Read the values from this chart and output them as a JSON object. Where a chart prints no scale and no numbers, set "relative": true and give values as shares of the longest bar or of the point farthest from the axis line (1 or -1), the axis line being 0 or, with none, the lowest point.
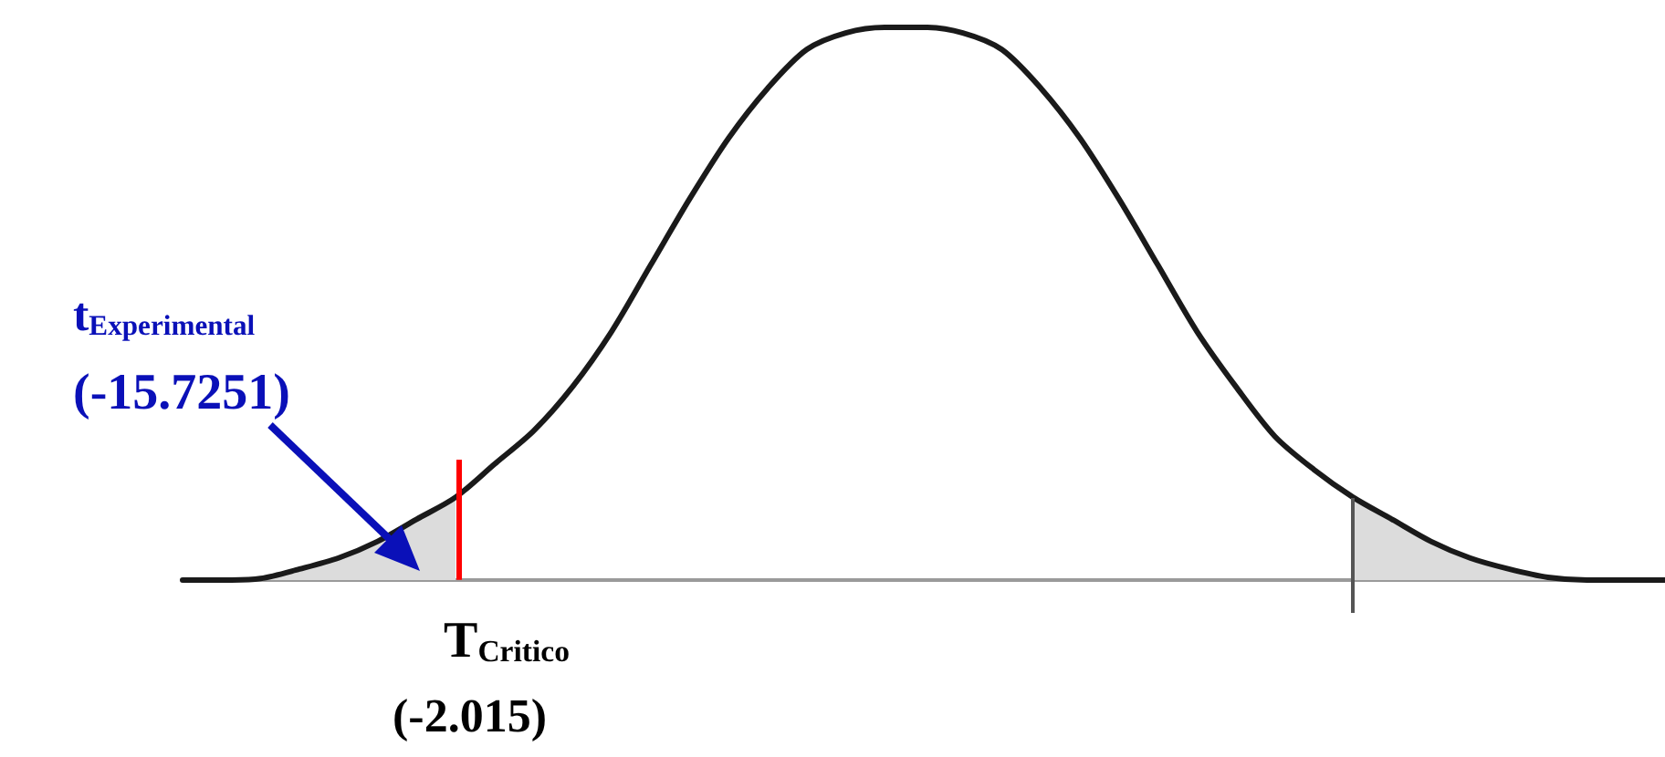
{
  "chart_data": {
    "type": "line",
    "relative": true,
    "categories": [
      null,
      null,
      null,
      null,
      null,
      null,
      null,
      null,
      null,
      null,
      null,
      null,
      null,
      null,
      null,
      null,
      null,
      null,
      null,
      null,
      null,
      null,
      null,
      null,
      null,
      null,
      null,
      null,
      null,
      null,
      null,
      null,
      null,
      null,
      null,
      null,
      null,
      null,
      null
    ],
    "series": [
      {
        "type": "area",
        "color": "#dcdcdc",
        "values": [
          0,
          0,
          0.003,
          0.02,
          0.04,
          0.07,
          0.11,
          0.15,
          null,
          null,
          null,
          null,
          null,
          null,
          null,
          null,
          null,
          null,
          null,
          null,
          null,
          null,
          null,
          null,
          null,
          null,
          null,
          null,
          null,
          null,
          null,
          null,
          null,
          null,
          null,
          null,
          null,
          null,
          null
        ]
      },
      {
        "type": "area",
        "color": "#dcdcdc",
        "values": [
          null,
          null,
          null,
          null,
          null,
          null,
          null,
          null,
          null,
          null,
          null,
          null,
          null,
          null,
          null,
          null,
          null,
          null,
          null,
          null,
          null,
          null,
          null,
          null,
          null,
          null,
          null,
          null,
          null,
          null,
          0.15,
          0.11,
          0.07,
          0.04,
          0.02,
          0.005,
          0,
          0,
          0
        ]
      },
      {
        "color": "#1a1a1a",
        "values": [
          0,
          0,
          0.003,
          0.02,
          0.04,
          0.07,
          0.11,
          0.15,
          0.21,
          0.27,
          0.35,
          0.45,
          0.57,
          0.69,
          0.8,
          0.89,
          0.96,
          0.99,
          1,
          1,
          0.99,
          0.96,
          0.89,
          0.8,
          0.69,
          0.57,
          0.45,
          0.35,
          0.26,
          0.2,
          0.15,
          0.11,
          0.07,
          0.04,
          0.02,
          0.005,
          0,
          0,
          0
        ]
      }
    ],
    "annotations": [
      "t$_{Experimental}$",
      "(-15.7251)",
      "T$_{Critico}$",
      "(-2.015)"
    ]
  }
}
